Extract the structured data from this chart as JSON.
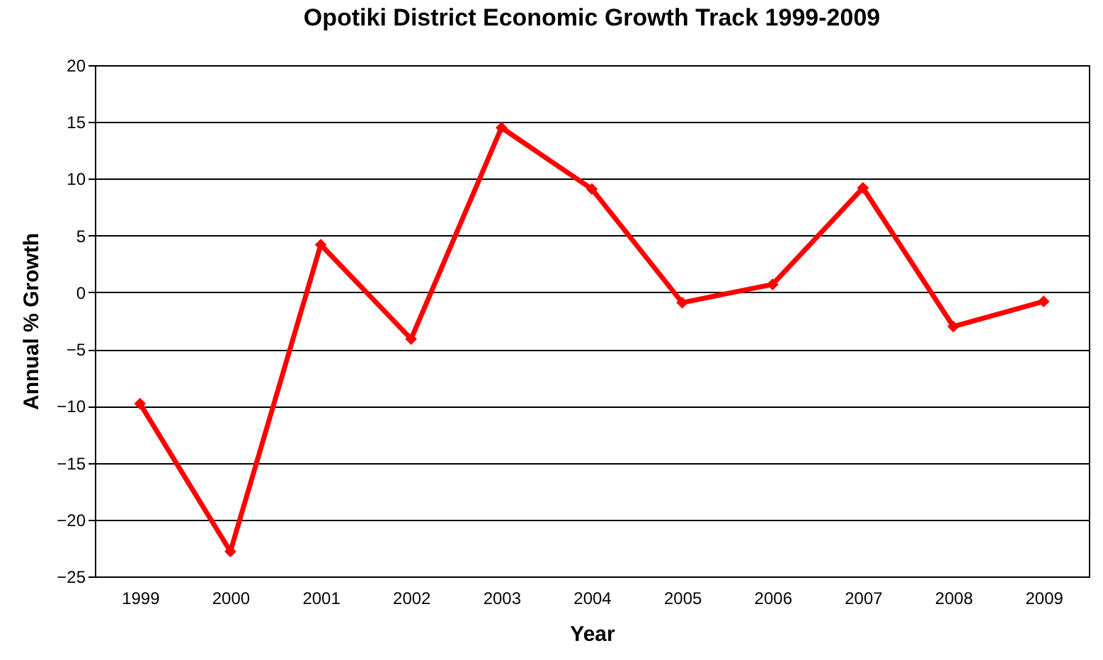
{
  "chart_data": {
    "type": "line",
    "title": "Opotiki District Economic Growth Track 1999-2009",
    "xlabel": "Year",
    "ylabel": "Annual % Growth",
    "categories": [
      "1999",
      "2000",
      "2001",
      "2002",
      "2003",
      "2004",
      "2005",
      "2006",
      "2007",
      "2008",
      "2009"
    ],
    "series": [
      {
        "color": "#ff0000",
        "values": [
          -9.8,
          -22.8,
          4.2,
          -4.1,
          14.5,
          9.1,
          -0.9,
          0.7,
          9.2,
          -3.0,
          -0.8
        ]
      }
    ],
    "ylim": [
      -25,
      20
    ],
    "yticks": [
      -25,
      -20,
      -15,
      -10,
      -5,
      0,
      5,
      10,
      15,
      20
    ],
    "grid": "y",
    "legend": false,
    "marker": "diamond",
    "line_style": "solid"
  }
}
